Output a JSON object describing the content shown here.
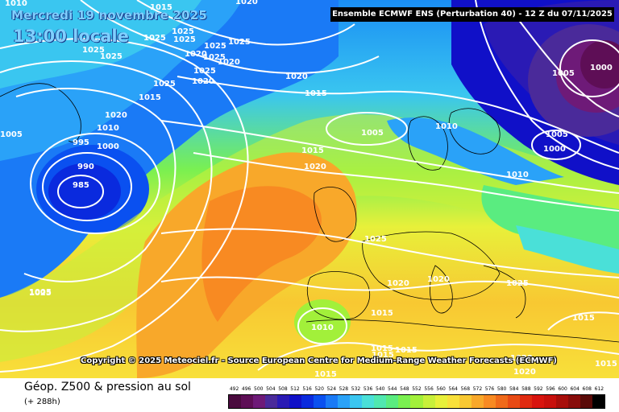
{
  "header": {
    "date_line": "Mercredi 19 novembre 2025",
    "time_line": "13:00 locale",
    "run_info": "Ensemble ECMWF ENS  (Perturbation 40)  -  12 Z du 07/11/2025"
  },
  "copyright": "Copyright © 2025 Meteociel.fr - Source European Centre for Medium-Range Weather Forecasts (ECMWF)",
  "footer": {
    "title": "Géop. Z500 & pression au sol",
    "subtitle": "(+ 288h)"
  },
  "legend": {
    "values": [
      "492",
      "496",
      "500",
      "504",
      "508",
      "512",
      "516",
      "520",
      "524",
      "528",
      "532",
      "536",
      "540",
      "544",
      "548",
      "552",
      "556",
      "560",
      "564",
      "568",
      "572",
      "576",
      "580",
      "584",
      "588",
      "592",
      "596",
      "600",
      "604",
      "608",
      "612"
    ],
    "colors": [
      "#4a0a3e",
      "#5e0e56",
      "#6e1a78",
      "#4a2a9a",
      "#2a1ab4",
      "#1010c8",
      "#0a2ade",
      "#0a50f0",
      "#1a7af6",
      "#2aa2f8",
      "#3ac6f0",
      "#4ae0d8",
      "#50e8b0",
      "#5aec80",
      "#7af050",
      "#a2f03a",
      "#c8f03a",
      "#e8f03a",
      "#f8e03a",
      "#f8c832",
      "#f8a82a",
      "#f88a22",
      "#f06a1a",
      "#e84a14",
      "#e02a10",
      "#d8140e",
      "#c8100c",
      "#a80e0a",
      "#880c0a",
      "#5a0a08",
      "#000000"
    ]
  },
  "isobar_labels": [
    {
      "id": "iso-1010-a",
      "text": "1010"
    },
    {
      "id": "iso-1015-a",
      "text": "1015"
    },
    {
      "id": "iso-1020-a",
      "text": "1020"
    },
    {
      "id": "iso-1025-a",
      "text": "1025"
    },
    {
      "id": "iso-1025-b",
      "text": "1025"
    },
    {
      "id": "iso-1025-c",
      "text": "1025"
    },
    {
      "id": "iso-1025-d",
      "text": "1025"
    },
    {
      "id": "iso-1025-e",
      "text": "1025"
    },
    {
      "id": "iso-1025-f",
      "text": "1025"
    },
    {
      "id": "iso-1025-g",
      "text": "1025"
    },
    {
      "id": "iso-1020-b",
      "text": "1020"
    },
    {
      "id": "iso-1025-h",
      "text": "1025"
    },
    {
      "id": "iso-1020-c",
      "text": "1020"
    },
    {
      "id": "iso-1025-i",
      "text": "1025"
    },
    {
      "id": "iso-1025-j",
      "text": "1025"
    },
    {
      "id": "iso-1020-d",
      "text": "1020"
    },
    {
      "id": "iso-1020-e",
      "text": "1020"
    },
    {
      "id": "iso-1015-b",
      "text": "1015"
    },
    {
      "id": "iso-1010-b",
      "text": "1010"
    },
    {
      "id": "iso-1005-a",
      "text": "1005"
    },
    {
      "id": "iso-1000-a",
      "text": "1000"
    },
    {
      "id": "iso-995",
      "text": "995"
    },
    {
      "id": "iso-990",
      "text": "990"
    },
    {
      "id": "iso-985",
      "text": "985"
    },
    {
      "id": "iso-1005-b",
      "text": "1005"
    },
    {
      "id": "iso-1020-f",
      "text": "1020"
    },
    {
      "id": "iso-1015-c",
      "text": "1015"
    },
    {
      "id": "iso-1005-c",
      "text": "1005"
    },
    {
      "id": "iso-1010-c",
      "text": "1010"
    },
    {
      "id": "iso-1015-d",
      "text": "1015"
    },
    {
      "id": "iso-1020-g",
      "text": "1020"
    },
    {
      "id": "iso-1005-d",
      "text": "1005"
    },
    {
      "id": "iso-1000-b",
      "text": "1000"
    },
    {
      "id": "iso-1005-e",
      "text": "1005"
    },
    {
      "id": "iso-1000-c",
      "text": "1000"
    },
    {
      "id": "iso-1010-d",
      "text": "1010"
    },
    {
      "id": "iso-1025-k",
      "text": "1025"
    },
    {
      "id": "iso-1020-h",
      "text": "1020"
    },
    {
      "id": "iso-1020-i",
      "text": "1020"
    },
    {
      "id": "iso-1025-l",
      "text": "1025"
    },
    {
      "id": "iso-1015-e",
      "text": "1015"
    },
    {
      "id": "iso-1010-e",
      "text": "1010"
    },
    {
      "id": "iso-1025-m",
      "text": "1025"
    },
    {
      "id": "iso-1015-f",
      "text": "1015"
    },
    {
      "id": "iso-1015-g",
      "text": "1015"
    },
    {
      "id": "iso-1015-h",
      "text": "1015"
    },
    {
      "id": "iso-1015-i",
      "text": "1015"
    },
    {
      "id": "iso-1015-j",
      "text": "1015"
    },
    {
      "id": "iso-1020-j",
      "text": "1020"
    },
    {
      "id": "iso-1020-k",
      "text": "1020"
    },
    {
      "id": "iso-1015-k",
      "text": "1015"
    }
  ]
}
